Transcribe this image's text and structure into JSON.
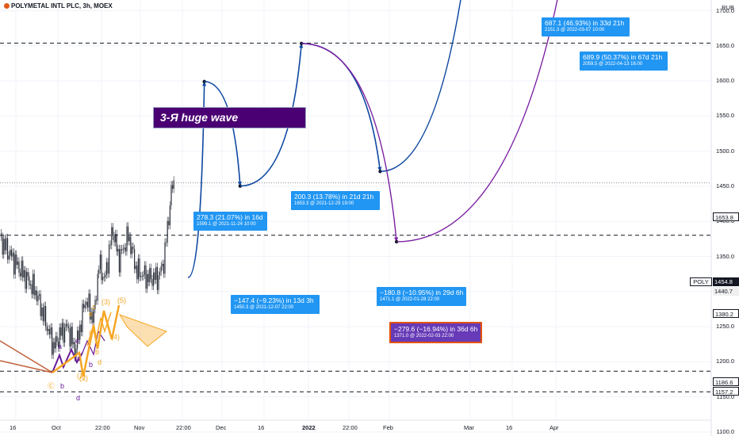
{
  "header": {
    "title": "POLYMETAL INTL PLC, 3h, MOEX"
  },
  "currency": "RUB",
  "annotation": {
    "text": "3-Я huge wave"
  },
  "chart_data": {
    "type": "line",
    "y_range": [
      1090,
      2225
    ],
    "y_ticks": [
      1100,
      1150,
      1200,
      1250,
      1300,
      1350,
      1400,
      1450,
      1500,
      1550,
      1600,
      1650,
      1700,
      1750,
      1800,
      1850,
      1900,
      1950,
      2000,
      2050,
      2100,
      2150,
      2200
    ],
    "x_ticks": [
      "16",
      "Oct",
      "22:00",
      "Nov",
      "22:00",
      "Dec",
      "16",
      "2022",
      "22:00",
      "Feb",
      "Mar",
      "16",
      "Apr"
    ],
    "symbol": "POLY",
    "last_price": "1454.8",
    "price_labels": [
      "1653.8",
      "1440.7",
      "1380.2",
      "1186.6",
      "1157.2"
    ],
    "horizontal_levels": [
      1653.8,
      1380.2,
      1186.6,
      1157.2
    ],
    "projection_path": [
      {
        "x": "2021-11-18",
        "y": 1320
      },
      {
        "x": "2021-11-24",
        "y": 1599.1
      },
      {
        "x": "2021-12-07",
        "y": 1450.3
      },
      {
        "x": "2021-12-29",
        "y": 1653.3
      },
      {
        "x": "2022-01-28",
        "y": 1471.1
      },
      {
        "x": "2022-03-07",
        "y": 2151.3
      }
    ],
    "alt_path": [
      {
        "x": "2021-12-29",
        "y": 1653.3
      },
      {
        "x": "2022-02-03",
        "y": 1371.0
      },
      {
        "x": "2022-04-13",
        "y": 2059.5
      }
    ],
    "projection_labels": [
      {
        "line1": "278.3 (21.07%) in 16d",
        "line2": "1599.1 @ 2021-11-24  10:00"
      },
      {
        "line1": "−147.4 (−9.23%) in 13d 3h",
        "line2": "1450.3 @ 2021-12-07  22:00"
      },
      {
        "line1": "200.3 (13.78%) in 21d 21h",
        "line2": "1653.3 @ 2021-12-29  19:00"
      },
      {
        "line1": "−180.8 (−10.95%) in 29d 6h",
        "line2": "1471.1 @ 2022-01-28  22:00"
      },
      {
        "line1": "687.1 (46.93%) in 33d 21h",
        "line2": "2151.3 @ 2022-03-07  10:00"
      },
      {
        "line1": "−279.6 (−16.94%) in 36d 6h",
        "line2": "1371.0 @ 2022-02-03  22:00"
      },
      {
        "line1": "689.9 (50.37%) in 67d 21h",
        "line2": "2059.5 @ 2022-04-13  16:00"
      }
    ],
    "wave_labels": [
      "a",
      "b",
      "c",
      "d",
      "e",
      "Ⓒ",
      "b",
      "(1)",
      "(2)",
      "(3)",
      "(4)",
      "(5)",
      "a",
      "b",
      "c",
      "d",
      "e"
    ],
    "colors": {
      "projection": "#0d47a1",
      "alt": "#7b1fa2",
      "label_blue": "#2196f3",
      "label_purple": "#673ab7",
      "wave_orange": "#f5a623",
      "wave_purple": "#6a1b9a",
      "trend": "#c0603a"
    }
  }
}
